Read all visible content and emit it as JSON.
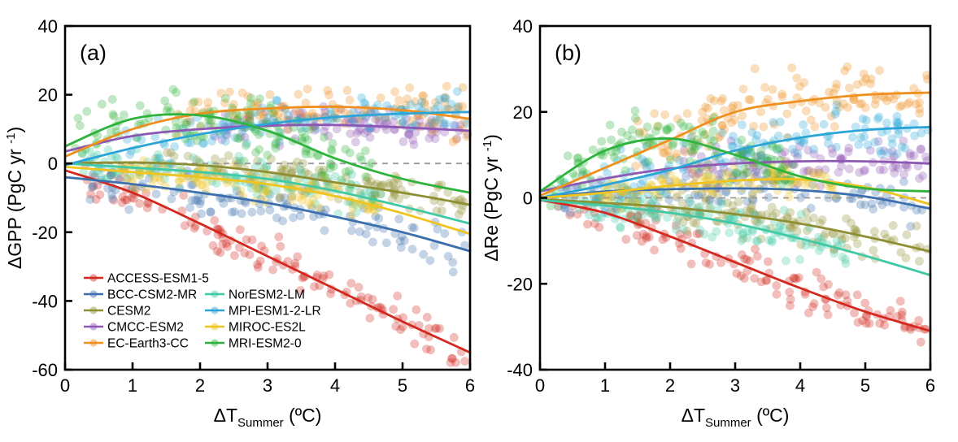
{
  "figure": {
    "kind": "two-panel scatter with fitted curves",
    "background": "#ffffff",
    "text_color": "#000000",
    "zero_line_color": "#999999"
  },
  "chart_data": [
    {
      "id": "a",
      "panel_label": "(a)",
      "type": "scatter",
      "xlabel": {
        "pre": "ΔT",
        "sub": "Summer",
        "post": " (ºC)"
      },
      "ylabel": {
        "pre": "ΔGPP (PgC yr ",
        "sup": "-1",
        "post": ")"
      },
      "xlim": [
        0,
        6
      ],
      "ylim": [
        -60,
        40
      ],
      "xticks": [
        0,
        1,
        2,
        3,
        4,
        5,
        6
      ],
      "yticks": [
        40,
        20,
        0,
        -20,
        -40,
        -60
      ],
      "zero_line": true,
      "x_samples": [
        0,
        1,
        2,
        3,
        4,
        5,
        6
      ],
      "series": [
        {
          "name": "ACCESS-ESM1-5",
          "color": "#D2281E",
          "values": [
            -2,
            -8.5,
            -17.5,
            -27,
            -36.5,
            -46,
            -55
          ],
          "scatter": {
            "n": 130,
            "x": [
              0.25,
              5.97
            ],
            "sd": 2.6
          }
        },
        {
          "name": "BCC-CSM2-MR",
          "color": "#3C6FAD",
          "values": [
            -4,
            -6,
            -8.5,
            -11.5,
            -15.5,
            -20,
            -25.5
          ],
          "scatter": {
            "n": 125,
            "x": [
              0.3,
              5.97
            ],
            "sd": 3.2
          }
        },
        {
          "name": "CESM2",
          "color": "#8E8F33",
          "values": [
            0,
            0.3,
            -0.5,
            -2.5,
            -5.5,
            -8.5,
            -12
          ],
          "scatter": {
            "n": 120,
            "x": [
              1.3,
              5.97
            ],
            "sd": 2.4
          }
        },
        {
          "name": "CMCC-ESM2",
          "color": "#8E57B4",
          "values": [
            3.5,
            8,
            10,
            11,
            11.2,
            10.5,
            9.5
          ],
          "scatter": {
            "n": 110,
            "x": [
              2.2,
              5.97
            ],
            "sd": 2.4
          }
        },
        {
          "name": "EC-Earth3-CC",
          "color": "#EE8F1E",
          "values": [
            2,
            10,
            14.5,
            16,
            16.5,
            15.5,
            13
          ],
          "scatter": {
            "n": 120,
            "x": [
              1.6,
              5.97
            ],
            "sd": 3.2
          }
        },
        {
          "name": "NorESM2-LM",
          "color": "#41C9A6",
          "values": [
            0,
            -1.2,
            -2.5,
            -4.5,
            -8,
            -12.5,
            -17.5
          ],
          "scatter": {
            "n": 130,
            "x": [
              0.25,
              4.7
            ],
            "sd": 2.4
          }
        },
        {
          "name": "MPI-ESM1-2-LR",
          "color": "#2BA5D8",
          "values": [
            -0.5,
            4.5,
            8.5,
            11.5,
            13.5,
            14.5,
            15
          ],
          "scatter": {
            "n": 120,
            "x": [
              0.9,
              5.97
            ],
            "sd": 2.8
          }
        },
        {
          "name": "MIROC-ES2L",
          "color": "#F0C41F",
          "values": [
            -1,
            -2.5,
            -4,
            -6,
            -9.5,
            -14.5,
            -20.5
          ],
          "scatter": {
            "n": 110,
            "x": [
              0.8,
              4.7
            ],
            "sd": 2.2
          }
        },
        {
          "name": "MRI-ESM2-0",
          "color": "#2EB33C",
          "values": [
            5,
            13,
            14,
            9.5,
            1.5,
            -4.5,
            -8.5
          ],
          "scatter": {
            "n": 140,
            "x": [
              0.15,
              4.6
            ],
            "sd": 3.8
          }
        }
      ]
    },
    {
      "id": "b",
      "panel_label": "(b)",
      "type": "scatter",
      "xlabel": {
        "pre": "ΔT",
        "sub": "Summer",
        "post": " (ºC)"
      },
      "ylabel": {
        "pre": "ΔRe (PgC yr ",
        "sup": "-1",
        "post": ")"
      },
      "xlim": [
        0,
        6
      ],
      "ylim": [
        -40,
        40
      ],
      "xticks": [
        0,
        1,
        2,
        3,
        4,
        5,
        6
      ],
      "yticks": [
        40,
        20,
        0,
        -20,
        -40
      ],
      "zero_line": true,
      "x_samples": [
        0,
        1,
        2,
        3,
        4,
        5,
        6
      ],
      "series": [
        {
          "name": "ACCESS-ESM1-5",
          "color": "#D2281E",
          "values": [
            -0.5,
            -3.5,
            -9,
            -15,
            -21,
            -26.5,
            -31
          ],
          "scatter": {
            "n": 130,
            "x": [
              0.25,
              5.97
            ],
            "sd": 2.2
          }
        },
        {
          "name": "BCC-CSM2-MR",
          "color": "#3C6FAD",
          "values": [
            0,
            1.5,
            2,
            2.2,
            1.8,
            0.3,
            -2.5
          ],
          "scatter": {
            "n": 120,
            "x": [
              0.3,
              5.97
            ],
            "sd": 2.4
          }
        },
        {
          "name": "CESM2",
          "color": "#8E8F33",
          "values": [
            -0.3,
            -1.2,
            -2.2,
            -3.8,
            -6,
            -9,
            -12.5
          ],
          "scatter": {
            "n": 120,
            "x": [
              1.3,
              5.97
            ],
            "sd": 2.2
          }
        },
        {
          "name": "CMCC-ESM2",
          "color": "#8E57B4",
          "values": [
            1.5,
            4.5,
            6.8,
            8,
            8.5,
            8.5,
            8
          ],
          "scatter": {
            "n": 110,
            "x": [
              2.2,
              5.97
            ],
            "sd": 2.2
          }
        },
        {
          "name": "EC-Earth3-CC",
          "color": "#EE8F1E",
          "values": [
            0.5,
            7,
            13.5,
            20,
            22.5,
            24,
            24.5
          ],
          "scatter": {
            "n": 130,
            "x": [
              1.4,
              5.97
            ],
            "sd": 3.6
          }
        },
        {
          "name": "NorESM2-LM",
          "color": "#41C9A6",
          "values": [
            -0.5,
            -1.8,
            -3.5,
            -6,
            -9.5,
            -13.5,
            -18
          ],
          "scatter": {
            "n": 140,
            "x": [
              0.25,
              4.7
            ],
            "sd": 2.2
          }
        },
        {
          "name": "MPI-ESM1-2-LR",
          "color": "#2BA5D8",
          "values": [
            0,
            3,
            6.5,
            11,
            14,
            15.8,
            16.5
          ],
          "scatter": {
            "n": 120,
            "x": [
              0.9,
              5.97
            ],
            "sd": 3.0
          }
        },
        {
          "name": "MIROC-ES2L",
          "color": "#F0C41F",
          "values": [
            0,
            1.2,
            2.8,
            4,
            4.3,
            2.5,
            -1.5
          ],
          "scatter": {
            "n": 110,
            "x": [
              0.8,
              4.6
            ],
            "sd": 1.8
          }
        },
        {
          "name": "MRI-ESM2-0",
          "color": "#2EB33C",
          "values": [
            1.5,
            11,
            13.8,
            10,
            5,
            2.2,
            1.5
          ],
          "scatter": {
            "n": 130,
            "x": [
              0.15,
              3.9
            ],
            "sd": 3.2
          }
        }
      ]
    }
  ],
  "legend": {
    "items": [
      {
        "label": "ACCESS-ESM1-5",
        "color": "#D2281E",
        "col": 0,
        "row": 0
      },
      {
        "label": "BCC-CSM2-MR",
        "color": "#3C6FAD",
        "col": 0,
        "row": 1
      },
      {
        "label": "CESM2",
        "color": "#8E8F33",
        "col": 0,
        "row": 2
      },
      {
        "label": "CMCC-ESM2",
        "color": "#8E57B4",
        "col": 0,
        "row": 3
      },
      {
        "label": "EC-Earth3-CC",
        "color": "#EE8F1E",
        "col": 0,
        "row": 4
      },
      {
        "label": "NorESM2-LM",
        "color": "#41C9A6",
        "col": 1,
        "row": 1
      },
      {
        "label": "MPI-ESM1-2-LR",
        "color": "#2BA5D8",
        "col": 1,
        "row": 2
      },
      {
        "label": "MIROC-ES2L",
        "color": "#F0C41F",
        "col": 1,
        "row": 3
      },
      {
        "label": "MRI-ESM2-0",
        "color": "#2EB33C",
        "col": 1,
        "row": 4
      }
    ]
  }
}
